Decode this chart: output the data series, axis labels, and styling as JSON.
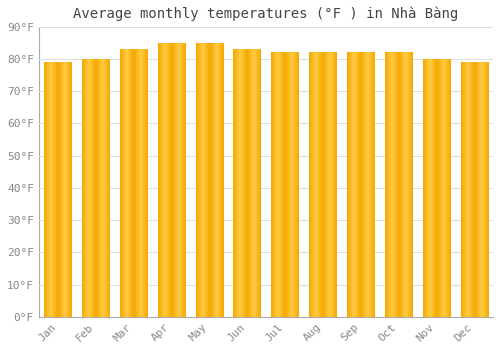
{
  "title": "Average monthly temperatures (°F ) in Nhà Bàng",
  "months": [
    "Jan",
    "Feb",
    "Mar",
    "Apr",
    "May",
    "Jun",
    "Jul",
    "Aug",
    "Sep",
    "Oct",
    "Nov",
    "Dec"
  ],
  "values": [
    79,
    80,
    83,
    85,
    85,
    83,
    82,
    82,
    82,
    82,
    80,
    79
  ],
  "bar_color_center": "#FFCC44",
  "bar_color_edge": "#F5A800",
  "background_color": "#FFFFFF",
  "grid_color": "#DDDDDD",
  "ylim": [
    0,
    90
  ],
  "yticks": [
    0,
    10,
    20,
    30,
    40,
    50,
    60,
    70,
    80,
    90
  ],
  "ytick_labels": [
    "0°F",
    "10°F",
    "20°F",
    "30°F",
    "40°F",
    "50°F",
    "60°F",
    "70°F",
    "80°F",
    "90°F"
  ],
  "title_fontsize": 10,
  "tick_fontsize": 8,
  "font_family": "monospace",
  "bar_width": 0.72,
  "spine_color": "#AAAAAA"
}
